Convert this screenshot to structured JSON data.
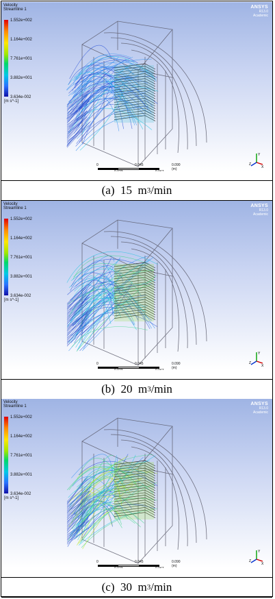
{
  "panels": [
    {
      "legend": {
        "title_line1": "Velocity",
        "title_line2": "Streamline 1",
        "ticks": [
          "1.552e+002",
          "1.164e+002",
          "7.761e+001",
          "3.882e+001",
          "3.634e-002"
        ],
        "unit": "[m s^-1]"
      },
      "brand": {
        "logo": "ANSYS",
        "version": "R13.0",
        "edition": "Academic"
      },
      "scale": {
        "left": "0",
        "mid": "0.045",
        "right": "0.090 (m)",
        "q1": "0.023",
        "q3": "0.067"
      },
      "axes": {
        "x": "X",
        "y": "Y",
        "z": "Z"
      },
      "caption": {
        "label": "(a)",
        "value": "15",
        "unit_base": "m",
        "unit_exp": "3",
        "unit_tail": "/min"
      },
      "flow_level": 0.35
    },
    {
      "legend": {
        "title_line1": "Velocity",
        "title_line2": "Streamline 1",
        "ticks": [
          "1.552e+002",
          "1.164e+002",
          "7.761e+001",
          "3.882e+001",
          "3.634e-002"
        ],
        "unit": "[m s^-1]"
      },
      "brand": {
        "logo": "ANSYS",
        "version": "R13.0",
        "edition": "Academic"
      },
      "scale": {
        "left": "0",
        "mid": "0.045",
        "right": "0.090 (m)",
        "q1": "0.023",
        "q3": "0.067"
      },
      "axes": {
        "x": "X",
        "y": "Y",
        "z": "Z"
      },
      "caption": {
        "label": "(b)",
        "value": "20",
        "unit_base": "m",
        "unit_exp": "3",
        "unit_tail": "/min"
      },
      "flow_level": 0.6
    },
    {
      "legend": {
        "title_line1": "Velocity",
        "title_line2": "Streamline 1",
        "ticks": [
          "1.552e+002",
          "1.164e+002",
          "7.761e+001",
          "3.882e+001",
          "3.634e-002"
        ],
        "unit": "[m s^-1]"
      },
      "brand": {
        "logo": "ANSYS",
        "version": "R13.0",
        "edition": "Academic"
      },
      "scale": {
        "left": "0",
        "mid": "0.045",
        "right": "0.090 (m)",
        "q1": "0.023",
        "q3": "0.067"
      },
      "axes": {
        "x": "X",
        "y": "Y",
        "z": "Z"
      },
      "caption": {
        "label": "(c)",
        "value": "30",
        "unit_base": "m",
        "unit_exp": "3",
        "unit_tail": "/min"
      },
      "flow_level": 0.9
    }
  ]
}
